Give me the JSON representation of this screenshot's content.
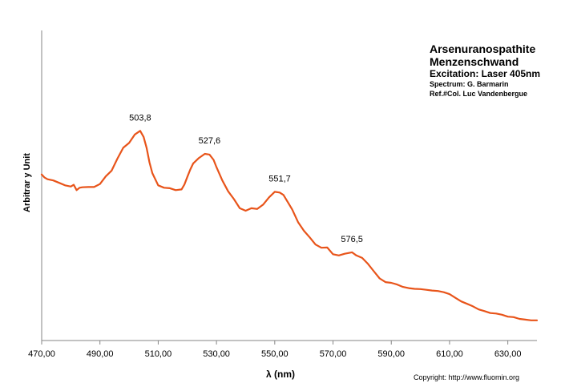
{
  "chart_data": {
    "type": "line",
    "title": "",
    "xlabel": "λ (nm)",
    "ylabel": "Arbitrar y Unit",
    "xlim": [
      470,
      640
    ],
    "ylim": [
      0,
      1
    ],
    "grid": false,
    "x_ticks": [
      "470,00",
      "490,00",
      "510,00",
      "530,00",
      "550,00",
      "570,00",
      "590,00",
      "610,00",
      "630,00"
    ],
    "x_tick_values": [
      470,
      490,
      510,
      530,
      550,
      570,
      590,
      610,
      630
    ],
    "y_ticks": [],
    "series": [
      {
        "color": "#e8541a",
        "x": [
          470,
          471,
          472,
          474,
          476,
          478,
          480,
          481,
          482,
          483,
          484,
          486,
          488,
          490,
          492,
          494,
          496,
          498,
          500,
          502,
          503.8,
          505,
          506,
          507,
          508,
          510,
          512,
          514,
          516,
          518,
          519,
          520,
          521,
          522,
          524,
          526,
          527.6,
          529,
          530,
          532,
          534,
          536,
          538,
          540,
          542,
          544,
          546,
          548,
          550,
          551.7,
          553,
          554,
          556,
          558,
          560,
          562,
          564,
          566,
          568,
          570,
          572,
          574,
          576.5,
          578,
          580,
          582,
          584,
          586,
          588,
          590,
          592,
          594,
          596,
          598,
          600,
          602,
          604,
          606,
          608,
          610,
          612,
          614,
          616,
          618,
          620,
          622,
          624,
          626,
          628,
          630,
          632,
          634,
          636,
          638,
          640
        ],
        "y": [
          0.67,
          0.657,
          0.65,
          0.645,
          0.635,
          0.625,
          0.62,
          0.627,
          0.605,
          0.615,
          0.617,
          0.618,
          0.618,
          0.63,
          0.662,
          0.685,
          0.735,
          0.78,
          0.8,
          0.835,
          0.85,
          0.825,
          0.78,
          0.72,
          0.675,
          0.625,
          0.615,
          0.613,
          0.605,
          0.608,
          0.628,
          0.66,
          0.69,
          0.715,
          0.738,
          0.755,
          0.752,
          0.73,
          0.7,
          0.645,
          0.6,
          0.568,
          0.53,
          0.52,
          0.53,
          0.527,
          0.545,
          0.575,
          0.598,
          0.595,
          0.585,
          0.565,
          0.525,
          0.473,
          0.437,
          0.41,
          0.38,
          0.367,
          0.368,
          0.34,
          0.335,
          0.342,
          0.348,
          0.335,
          0.325,
          0.3,
          0.27,
          0.24,
          0.225,
          0.222,
          0.215,
          0.205,
          0.2,
          0.197,
          0.196,
          0.193,
          0.19,
          0.188,
          0.183,
          0.175,
          0.16,
          0.145,
          0.135,
          0.125,
          0.112,
          0.105,
          0.097,
          0.095,
          0.09,
          0.082,
          0.08,
          0.073,
          0.07,
          0.067,
          0.067
        ]
      }
    ],
    "annotations": [
      {
        "text": "503,8",
        "x": 503.8,
        "y": 0.85
      },
      {
        "text": "527,6",
        "x": 527.6,
        "y": 0.755
      },
      {
        "text": "551,7",
        "x": 551.7,
        "y": 0.598
      },
      {
        "text": "576,5",
        "x": 576.5,
        "y": 0.348
      }
    ]
  },
  "info": {
    "mineral": "Arsenuranospathite",
    "locality": "Menzenschwand",
    "excitation": "Excitation:  Laser 405nm",
    "spectrum": "Spectrum: G. Barmarin",
    "ref": "Ref.#Col. Luc Vandenbergue"
  },
  "copyright": "Copyright: http://www.fluomin.org"
}
